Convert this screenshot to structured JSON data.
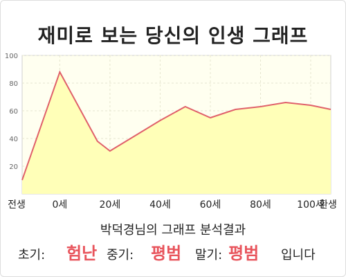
{
  "chart_data": {
    "type": "area",
    "title": "재미로 보는 당신의 인생 그래프",
    "x_tick_labels": [
      "전생",
      "0세",
      "20세",
      "40세",
      "60세",
      "80세",
      "100세",
      "환생"
    ],
    "points_x": [
      -15,
      0,
      15,
      20,
      30,
      40,
      50,
      60,
      70,
      80,
      90,
      100,
      108
    ],
    "points_y": [
      10,
      88,
      38,
      31,
      42,
      53,
      63,
      55,
      61,
      63,
      66,
      64,
      61
    ],
    "y_ticks": [
      "20",
      "40",
      "60",
      "80",
      "100"
    ],
    "ylim": [
      0,
      100
    ],
    "grid": true,
    "colors": {
      "line": "#e0606a",
      "fill": "#ffffb8",
      "plot_bg": "#fffff0",
      "grid": "#e6e6cf"
    }
  },
  "result": {
    "title": "박덕경님의 그래프 분석결과",
    "early_label": "초기:",
    "early_value": "험난",
    "middle_label": "중기:",
    "middle_value": "평범",
    "late_label": "말기:",
    "late_value": "평범",
    "suffix": "입니다"
  }
}
